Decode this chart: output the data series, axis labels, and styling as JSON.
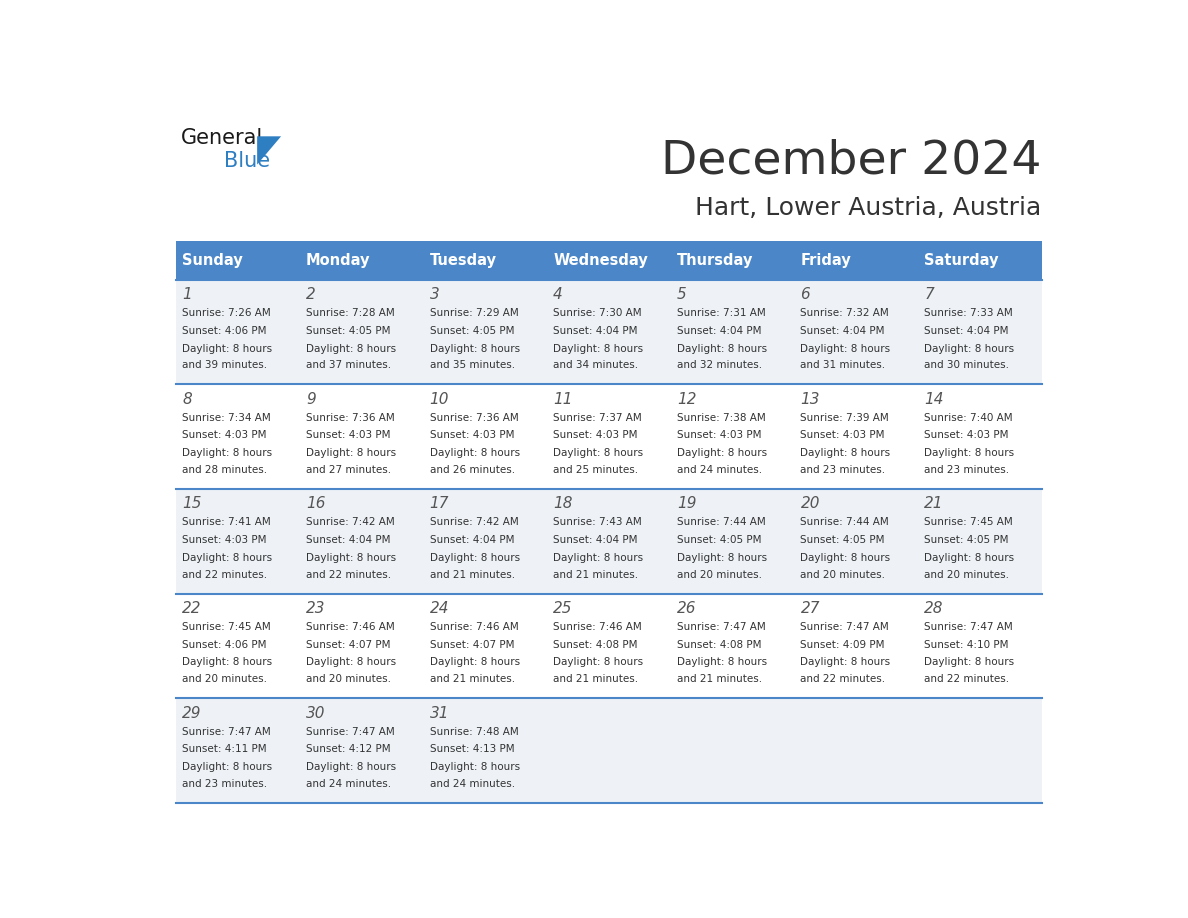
{
  "title": "December 2024",
  "subtitle": "Hart, Lower Austria, Austria",
  "header_color": "#4a86c8",
  "header_text_color": "#ffffff",
  "days_of_week": [
    "Sunday",
    "Monday",
    "Tuesday",
    "Wednesday",
    "Thursday",
    "Friday",
    "Saturday"
  ],
  "weeks": [
    [
      {
        "day": 1,
        "sunrise": "7:26 AM",
        "sunset": "4:06 PM",
        "daylight": "8 hours and 39 minutes."
      },
      {
        "day": 2,
        "sunrise": "7:28 AM",
        "sunset": "4:05 PM",
        "daylight": "8 hours and 37 minutes."
      },
      {
        "day": 3,
        "sunrise": "7:29 AM",
        "sunset": "4:05 PM",
        "daylight": "8 hours and 35 minutes."
      },
      {
        "day": 4,
        "sunrise": "7:30 AM",
        "sunset": "4:04 PM",
        "daylight": "8 hours and 34 minutes."
      },
      {
        "day": 5,
        "sunrise": "7:31 AM",
        "sunset": "4:04 PM",
        "daylight": "8 hours and 32 minutes."
      },
      {
        "day": 6,
        "sunrise": "7:32 AM",
        "sunset": "4:04 PM",
        "daylight": "8 hours and 31 minutes."
      },
      {
        "day": 7,
        "sunrise": "7:33 AM",
        "sunset": "4:04 PM",
        "daylight": "8 hours and 30 minutes."
      }
    ],
    [
      {
        "day": 8,
        "sunrise": "7:34 AM",
        "sunset": "4:03 PM",
        "daylight": "8 hours and 28 minutes."
      },
      {
        "day": 9,
        "sunrise": "7:36 AM",
        "sunset": "4:03 PM",
        "daylight": "8 hours and 27 minutes."
      },
      {
        "day": 10,
        "sunrise": "7:36 AM",
        "sunset": "4:03 PM",
        "daylight": "8 hours and 26 minutes."
      },
      {
        "day": 11,
        "sunrise": "7:37 AM",
        "sunset": "4:03 PM",
        "daylight": "8 hours and 25 minutes."
      },
      {
        "day": 12,
        "sunrise": "7:38 AM",
        "sunset": "4:03 PM",
        "daylight": "8 hours and 24 minutes."
      },
      {
        "day": 13,
        "sunrise": "7:39 AM",
        "sunset": "4:03 PM",
        "daylight": "8 hours and 23 minutes."
      },
      {
        "day": 14,
        "sunrise": "7:40 AM",
        "sunset": "4:03 PM",
        "daylight": "8 hours and 23 minutes."
      }
    ],
    [
      {
        "day": 15,
        "sunrise": "7:41 AM",
        "sunset": "4:03 PM",
        "daylight": "8 hours and 22 minutes."
      },
      {
        "day": 16,
        "sunrise": "7:42 AM",
        "sunset": "4:04 PM",
        "daylight": "8 hours and 22 minutes."
      },
      {
        "day": 17,
        "sunrise": "7:42 AM",
        "sunset": "4:04 PM",
        "daylight": "8 hours and 21 minutes."
      },
      {
        "day": 18,
        "sunrise": "7:43 AM",
        "sunset": "4:04 PM",
        "daylight": "8 hours and 21 minutes."
      },
      {
        "day": 19,
        "sunrise": "7:44 AM",
        "sunset": "4:05 PM",
        "daylight": "8 hours and 20 minutes."
      },
      {
        "day": 20,
        "sunrise": "7:44 AM",
        "sunset": "4:05 PM",
        "daylight": "8 hours and 20 minutes."
      },
      {
        "day": 21,
        "sunrise": "7:45 AM",
        "sunset": "4:05 PM",
        "daylight": "8 hours and 20 minutes."
      }
    ],
    [
      {
        "day": 22,
        "sunrise": "7:45 AM",
        "sunset": "4:06 PM",
        "daylight": "8 hours and 20 minutes."
      },
      {
        "day": 23,
        "sunrise": "7:46 AM",
        "sunset": "4:07 PM",
        "daylight": "8 hours and 20 minutes."
      },
      {
        "day": 24,
        "sunrise": "7:46 AM",
        "sunset": "4:07 PM",
        "daylight": "8 hours and 21 minutes."
      },
      {
        "day": 25,
        "sunrise": "7:46 AM",
        "sunset": "4:08 PM",
        "daylight": "8 hours and 21 minutes."
      },
      {
        "day": 26,
        "sunrise": "7:47 AM",
        "sunset": "4:08 PM",
        "daylight": "8 hours and 21 minutes."
      },
      {
        "day": 27,
        "sunrise": "7:47 AM",
        "sunset": "4:09 PM",
        "daylight": "8 hours and 22 minutes."
      },
      {
        "day": 28,
        "sunrise": "7:47 AM",
        "sunset": "4:10 PM",
        "daylight": "8 hours and 22 minutes."
      }
    ],
    [
      {
        "day": 29,
        "sunrise": "7:47 AM",
        "sunset": "4:11 PM",
        "daylight": "8 hours and 23 minutes."
      },
      {
        "day": 30,
        "sunrise": "7:47 AM",
        "sunset": "4:12 PM",
        "daylight": "8 hours and 24 minutes."
      },
      {
        "day": 31,
        "sunrise": "7:48 AM",
        "sunset": "4:13 PM",
        "daylight": "8 hours and 24 minutes."
      },
      null,
      null,
      null,
      null
    ]
  ],
  "bg_color": "#ffffff",
  "cell_bg_even": "#eef2f7",
  "cell_bg_odd": "#ffffff",
  "text_color": "#333333",
  "day_number_color": "#555555",
  "divider_color": "#4a86c8",
  "logo_general_color": "#1a1a1a",
  "logo_blue_color": "#2e7ec2"
}
